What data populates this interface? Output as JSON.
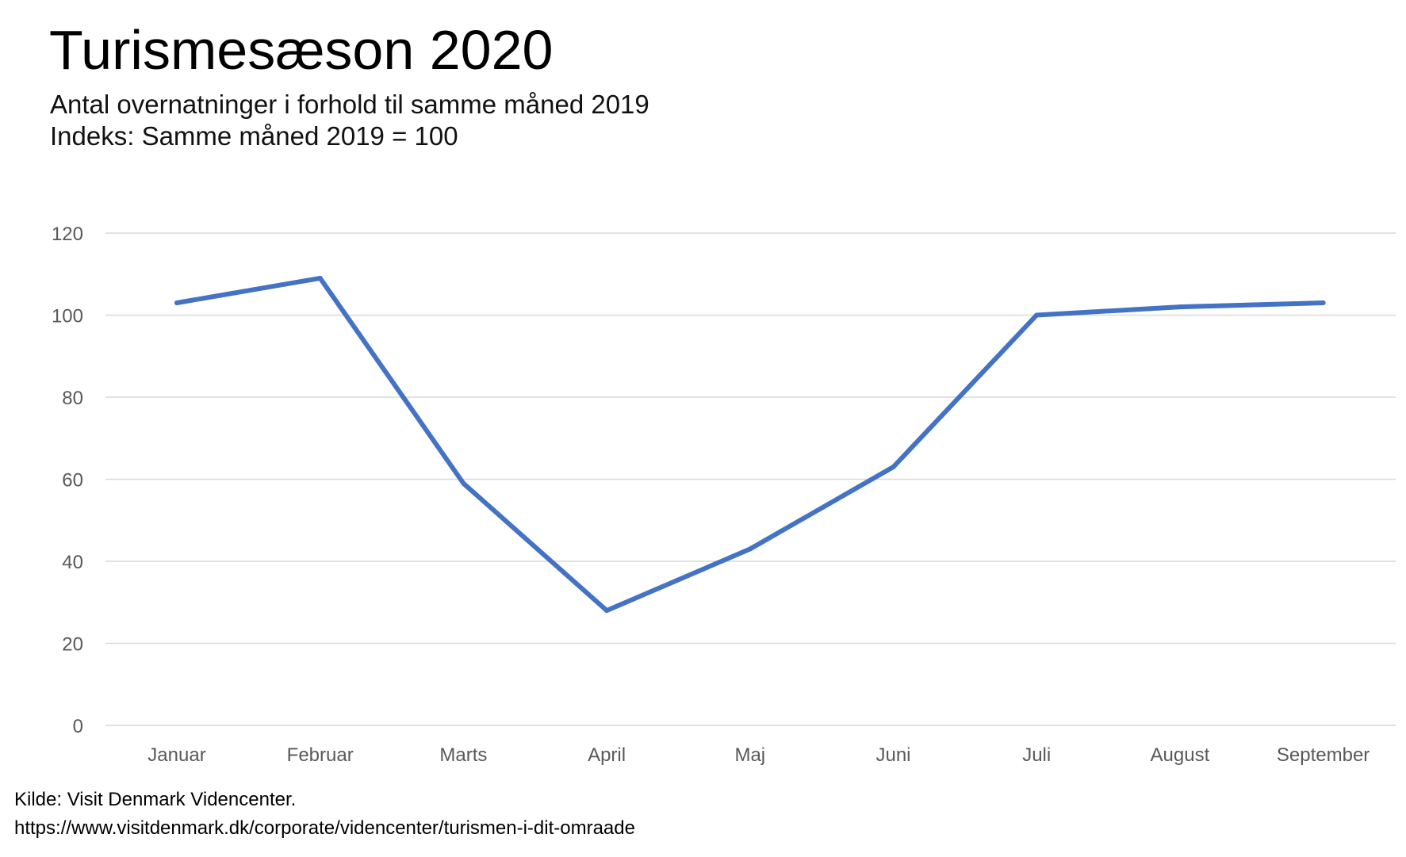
{
  "header": {
    "title": "Turismesæson 2020",
    "subtitle_line1": "Antal overnatninger i forhold til samme måned 2019",
    "subtitle_line2": "Indeks: Samme måned 2019 = 100"
  },
  "footer": {
    "source_label": "Kilde: Visit Denmark Videncenter.",
    "source_url": "https://www.visitdenmark.dk/corporate/videncenter/turismen-i-dit-omraade"
  },
  "chart_data": {
    "type": "line",
    "title": "Turismesæson 2020",
    "subtitle": "Antal overnatninger i forhold til samme måned 2019 — Indeks: Samme måned 2019 = 100",
    "xlabel": "",
    "ylabel": "",
    "categories": [
      "Januar",
      "Februar",
      "Marts",
      "April",
      "Maj",
      "Juni",
      "Juli",
      "August",
      "September"
    ],
    "series": [
      {
        "values": [
          103,
          109,
          59,
          28,
          43,
          63,
          100,
          102,
          103
        ]
      }
    ],
    "ylim": [
      0,
      120
    ],
    "yticks": [
      0,
      20,
      40,
      60,
      80,
      100,
      120
    ],
    "grid": true,
    "legend": "none",
    "colors": {
      "line": "#4472C4",
      "grid": "#D9D9D9",
      "tick_label": "#595959"
    }
  }
}
